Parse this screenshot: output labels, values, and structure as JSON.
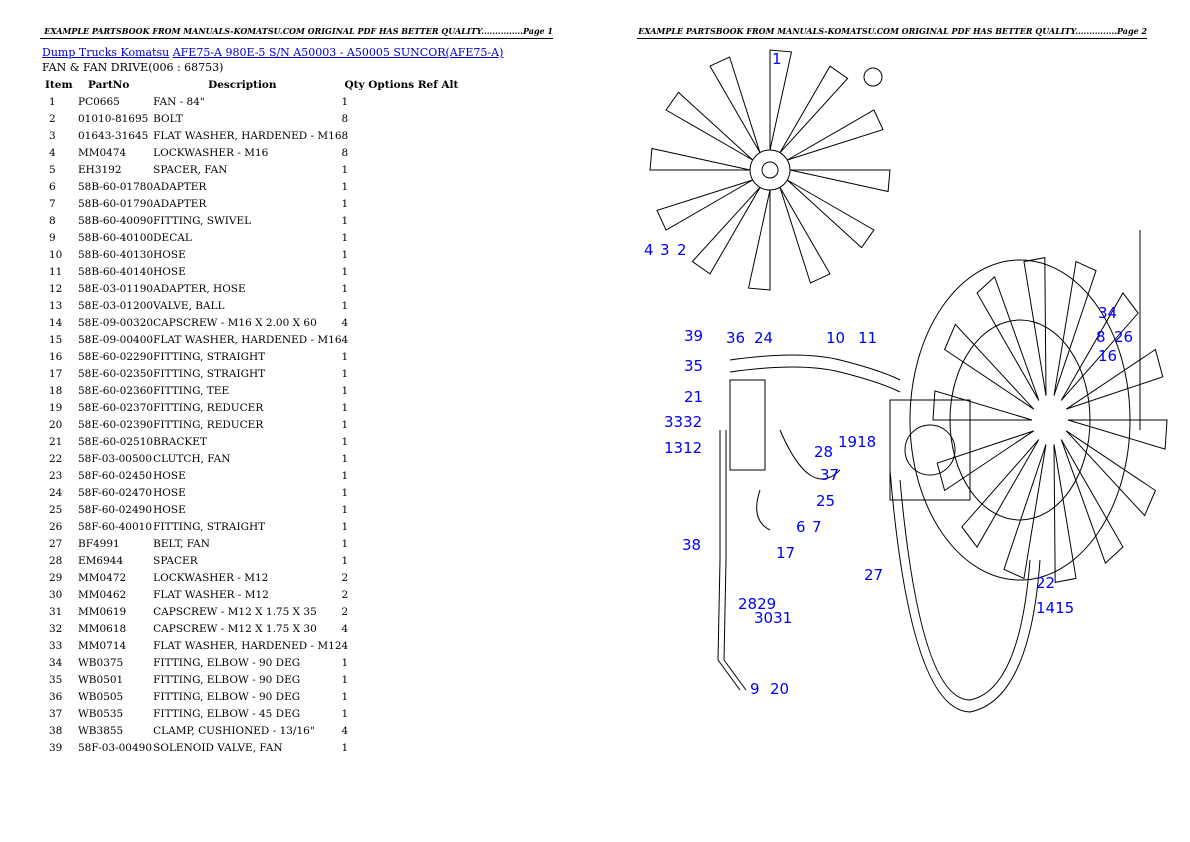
{
  "header": {
    "page1": "EXAMPLE PARTSBOOK FROM MANUALS-KOMATSU.COM ORIGINAL PDF HAS BETTER QUALITY...............Page 1",
    "page2": "EXAMPLE PARTSBOOK FROM MANUALS-KOMATSU.COM ORIGINAL PDF HAS BETTER QUALITY...............Page 2"
  },
  "breadcrumb": {
    "category": "Dump Trucks Komatsu",
    "model": "AFE75-A 980E-5 S/N A50003 - A50005 SUNCOR(AFE75-A)"
  },
  "section": "FAN & FAN DRIVE(006 : 68753)",
  "columns": [
    "Item",
    "PartNo",
    "Description",
    "Qty Options Ref Alt"
  ],
  "rows": [
    [
      "1",
      "PC0665",
      "FAN - 84\"",
      "1"
    ],
    [
      "2",
      "01010-81695",
      "BOLT",
      "8"
    ],
    [
      "3",
      "01643-31645",
      "FLAT WASHER, HARDENED - M16",
      "8"
    ],
    [
      "4",
      "MM0474",
      "LOCKWASHER - M16",
      "8"
    ],
    [
      "5",
      "EH3192",
      "SPACER, FAN",
      "1"
    ],
    [
      "6",
      "58B-60-01780",
      "ADAPTER",
      "1"
    ],
    [
      "7",
      "58B-60-01790",
      "ADAPTER",
      "1"
    ],
    [
      "8",
      "58B-60-40090",
      "FITTING, SWIVEL",
      "1"
    ],
    [
      "9",
      "58B-60-40100",
      "DECAL",
      "1"
    ],
    [
      "10",
      "58B-60-40130",
      "HOSE",
      "1"
    ],
    [
      "11",
      "58B-60-40140",
      "HOSE",
      "1"
    ],
    [
      "12",
      "58E-03-01190",
      "ADAPTER, HOSE",
      "1"
    ],
    [
      "13",
      "58E-03-01200",
      "VALVE, BALL",
      "1"
    ],
    [
      "14",
      "58E-09-00320",
      "CAPSCREW - M16 X 2.00 X 60",
      "4"
    ],
    [
      "15",
      "58E-09-00400",
      "FLAT WASHER, HARDENED - M16",
      "4"
    ],
    [
      "16",
      "58E-60-02290",
      "FITTING, STRAIGHT",
      "1"
    ],
    [
      "17",
      "58E-60-02350",
      "FITTING, STRAIGHT",
      "1"
    ],
    [
      "18",
      "58E-60-02360",
      "FITTING, TEE",
      "1"
    ],
    [
      "19",
      "58E-60-02370",
      "FITTING, REDUCER",
      "1"
    ],
    [
      "20",
      "58E-60-02390",
      "FITTING, REDUCER",
      "1"
    ],
    [
      "21",
      "58E-60-02510",
      "BRACKET",
      "1"
    ],
    [
      "22",
      "58F-03-00500",
      "CLUTCH, FAN",
      "1"
    ],
    [
      "23",
      "58F-60-02450",
      "HOSE",
      "1"
    ],
    [
      "24",
      "58F-60-02470",
      "HOSE",
      "1"
    ],
    [
      "25",
      "58F-60-02490",
      "HOSE",
      "1"
    ],
    [
      "26",
      "58F-60-40010",
      "FITTING, STRAIGHT",
      "1"
    ],
    [
      "27",
      "BF4991",
      "BELT, FAN",
      "1"
    ],
    [
      "28",
      "EM6944",
      "SPACER",
      "1"
    ],
    [
      "29",
      "MM0472",
      "LOCKWASHER - M12",
      "2"
    ],
    [
      "30",
      "MM0462",
      "FLAT WASHER - M12",
      "2"
    ],
    [
      "31",
      "MM0619",
      "CAPSCREW - M12 X 1.75 X 35",
      "2"
    ],
    [
      "32",
      "MM0618",
      "CAPSCREW - M12 X 1.75 X 30",
      "4"
    ],
    [
      "33",
      "MM0714",
      "FLAT WASHER, HARDENED - M12",
      "4"
    ],
    [
      "34",
      "WB0375",
      "FITTING, ELBOW - 90 DEG",
      "1"
    ],
    [
      "35",
      "WB0501",
      "FITTING, ELBOW - 90 DEG",
      "1"
    ],
    [
      "36",
      "WB0505",
      "FITTING, ELBOW - 90 DEG",
      "1"
    ],
    [
      "37",
      "WB0535",
      "FITTING, ELBOW - 45 DEG",
      "1"
    ],
    [
      "38",
      "WB3855",
      "CLAMP, CUSHIONED - 13/16\"",
      "4"
    ],
    [
      "39",
      "58F-03-00490",
      "SOLENOID VALVE, FAN",
      "1"
    ]
  ],
  "diagram": {
    "callout_color": "#0000ff",
    "callouts": [
      "1",
      "4",
      "3",
      "2",
      "34",
      "8",
      "26",
      "16",
      "39",
      "36",
      "24",
      "10",
      "11",
      "35",
      "21",
      "3332",
      "1312",
      "28",
      "1918",
      "37",
      "25",
      "6",
      "7",
      "38",
      "17",
      "27",
      "22",
      "1415",
      "2829",
      "3031",
      "9",
      "20"
    ]
  }
}
